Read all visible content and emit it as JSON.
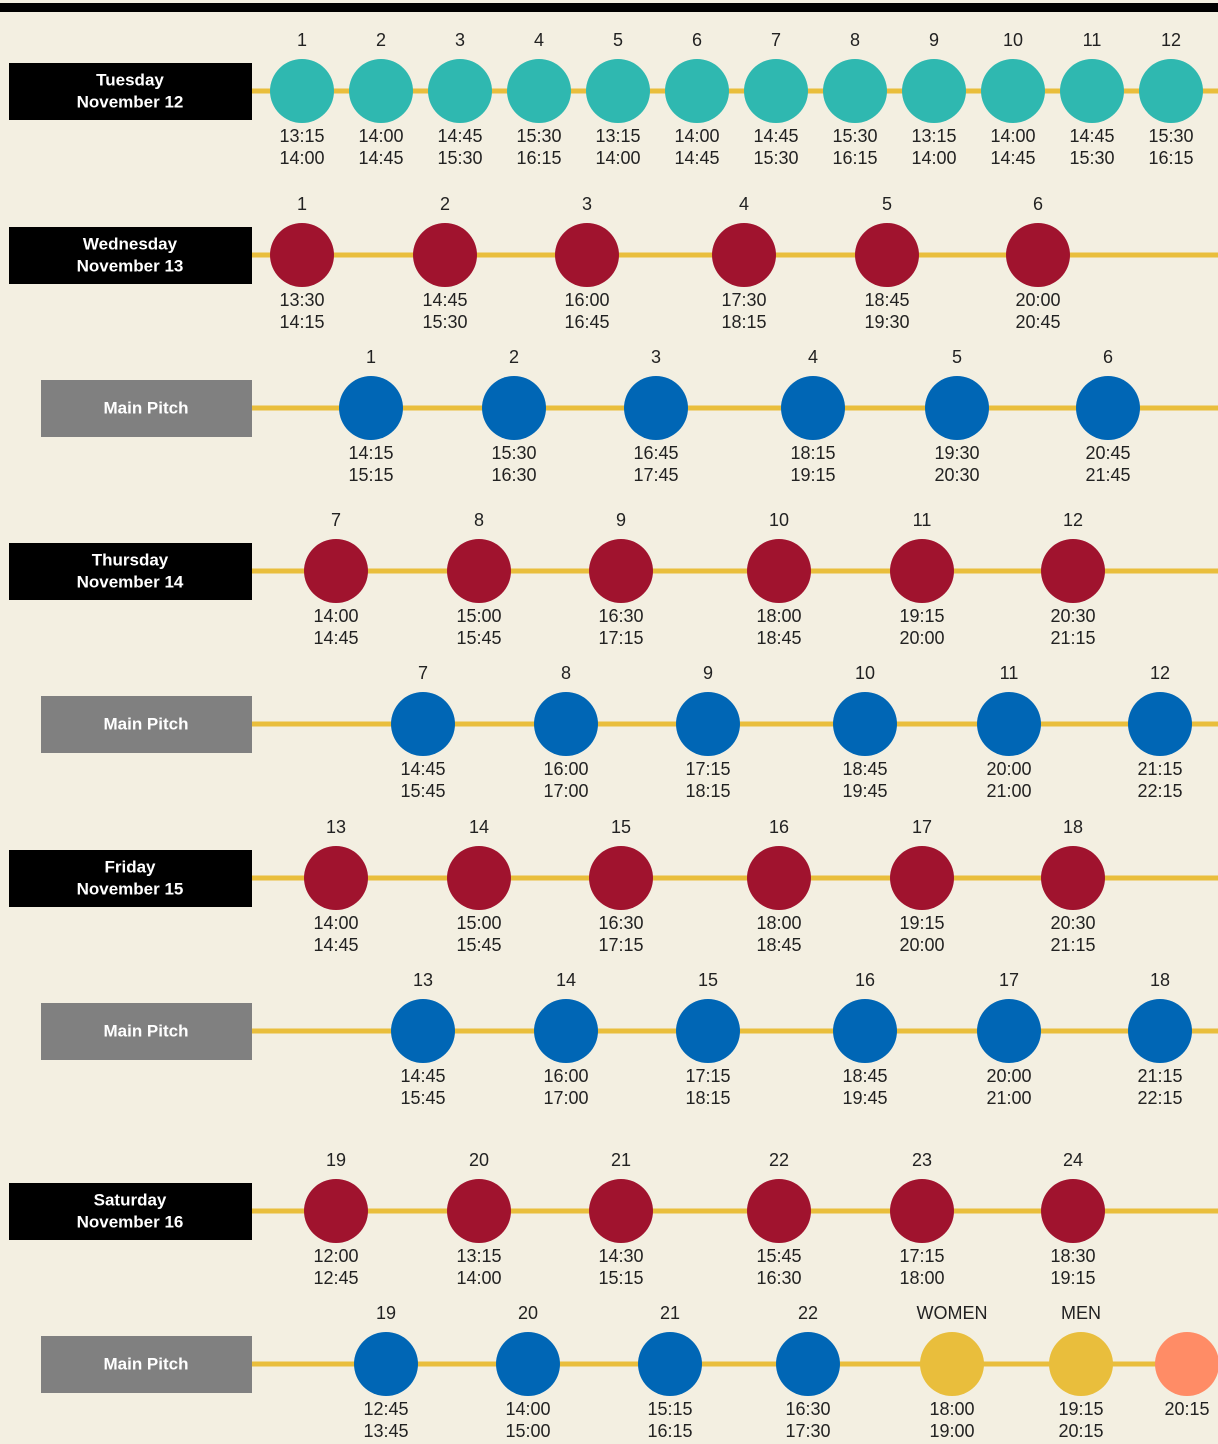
{
  "rows": [
    {
      "day": "Tuesday",
      "date": "November 12",
      "color": "#2fb8b0",
      "games": [
        {
          "label": "1",
          "start": "13:15",
          "end": "14:00"
        },
        {
          "label": "2",
          "start": "14:00",
          "end": "14:45"
        },
        {
          "label": "3",
          "start": "14:45",
          "end": "15:30"
        },
        {
          "label": "4",
          "start": "15:30",
          "end": "16:15"
        },
        {
          "label": "5",
          "start": "13:15",
          "end": "14:00"
        },
        {
          "label": "6",
          "start": "14:00",
          "end": "14:45"
        },
        {
          "label": "7",
          "start": "14:45",
          "end": "15:30"
        },
        {
          "label": "8",
          "start": "15:30",
          "end": "16:15"
        },
        {
          "label": "9",
          "start": "13:15",
          "end": "14:00"
        },
        {
          "label": "10",
          "start": "14:00",
          "end": "14:45"
        },
        {
          "label": "11",
          "start": "14:45",
          "end": "15:30"
        },
        {
          "label": "12",
          "start": "15:30",
          "end": "16:15"
        }
      ]
    },
    {
      "day": "Wednesday",
      "date": "November 13",
      "color": "#a0132e",
      "games": [
        {
          "label": "1",
          "start": "13:30",
          "end": "14:15"
        },
        {
          "label": "2",
          "start": "14:45",
          "end": "15:30"
        },
        {
          "label": "3",
          "start": "16:00",
          "end": "16:45"
        },
        {
          "label": "4",
          "start": "17:30",
          "end": "18:15"
        },
        {
          "label": "5",
          "start": "18:45",
          "end": "19:30"
        },
        {
          "label": "6",
          "start": "20:00",
          "end": "20:45"
        }
      ]
    },
    {
      "venue": "Main Pitch",
      "color": "#0066b5",
      "games": [
        {
          "label": "1",
          "start": "14:15",
          "end": "15:15"
        },
        {
          "label": "2",
          "start": "15:30",
          "end": "16:30"
        },
        {
          "label": "3",
          "start": "16:45",
          "end": "17:45"
        },
        {
          "label": "4",
          "start": "18:15",
          "end": "19:15"
        },
        {
          "label": "5",
          "start": "19:30",
          "end": "20:30"
        },
        {
          "label": "6",
          "start": "20:45",
          "end": "21:45"
        }
      ]
    },
    {
      "day": "Thursday",
      "date": "November 14",
      "color": "#a0132e",
      "games": [
        {
          "label": "7",
          "start": "14:00",
          "end": "14:45"
        },
        {
          "label": "8",
          "start": "15:00",
          "end": "15:45"
        },
        {
          "label": "9",
          "start": "16:30",
          "end": "17:15"
        },
        {
          "label": "10",
          "start": "18:00",
          "end": "18:45"
        },
        {
          "label": "11",
          "start": "19:15",
          "end": "20:00"
        },
        {
          "label": "12",
          "start": "20:30",
          "end": "21:15"
        }
      ]
    },
    {
      "venue": "Main Pitch",
      "color": "#0066b5",
      "games": [
        {
          "label": "7",
          "start": "14:45",
          "end": "15:45"
        },
        {
          "label": "8",
          "start": "16:00",
          "end": "17:00"
        },
        {
          "label": "9",
          "start": "17:15",
          "end": "18:15"
        },
        {
          "label": "10",
          "start": "18:45",
          "end": "19:45"
        },
        {
          "label": "11",
          "start": "20:00",
          "end": "21:00"
        },
        {
          "label": "12",
          "start": "21:15",
          "end": "22:15"
        }
      ]
    },
    {
      "day": "Friday",
      "date": "November 15",
      "color": "#a0132e",
      "games": [
        {
          "label": "13",
          "start": "14:00",
          "end": "14:45"
        },
        {
          "label": "14",
          "start": "15:00",
          "end": "15:45"
        },
        {
          "label": "15",
          "start": "16:30",
          "end": "17:15"
        },
        {
          "label": "16",
          "start": "18:00",
          "end": "18:45"
        },
        {
          "label": "17",
          "start": "19:15",
          "end": "20:00"
        },
        {
          "label": "18",
          "start": "20:30",
          "end": "21:15"
        }
      ]
    },
    {
      "venue": "Main Pitch",
      "color": "#0066b5",
      "games": [
        {
          "label": "13",
          "start": "14:45",
          "end": "15:45"
        },
        {
          "label": "14",
          "start": "16:00",
          "end": "17:00"
        },
        {
          "label": "15",
          "start": "17:15",
          "end": "18:15"
        },
        {
          "label": "16",
          "start": "18:45",
          "end": "19:45"
        },
        {
          "label": "17",
          "start": "20:00",
          "end": "21:00"
        },
        {
          "label": "18",
          "start": "21:15",
          "end": "22:15"
        }
      ]
    },
    {
      "day": "Saturday",
      "date": "November 16",
      "color": "#a0132e",
      "games": [
        {
          "label": "19",
          "start": "12:00",
          "end": "12:45"
        },
        {
          "label": "20",
          "start": "13:15",
          "end": "14:00"
        },
        {
          "label": "21",
          "start": "14:30",
          "end": "15:15"
        },
        {
          "label": "22",
          "start": "15:45",
          "end": "16:30"
        },
        {
          "label": "23",
          "start": "17:15",
          "end": "18:00"
        },
        {
          "label": "24",
          "start": "18:30",
          "end": "19:15"
        }
      ]
    },
    {
      "venue": "Main Pitch",
      "color": "#0066b5",
      "games": [
        {
          "label": "19",
          "start": "12:45",
          "end": "13:45"
        },
        {
          "label": "20",
          "start": "14:00",
          "end": "15:00"
        },
        {
          "label": "21",
          "start": "15:15",
          "end": "16:15"
        },
        {
          "label": "22",
          "start": "16:30",
          "end": "17:30"
        },
        {
          "label": "WOMEN",
          "start": "18:00",
          "end": "19:00",
          "color": "#e9be3c"
        },
        {
          "label": "MEN",
          "start": "19:15",
          "end": "20:15",
          "color": "#e9be3c"
        },
        {
          "start": "20:15",
          "color": "#ff8c66"
        }
      ]
    }
  ]
}
